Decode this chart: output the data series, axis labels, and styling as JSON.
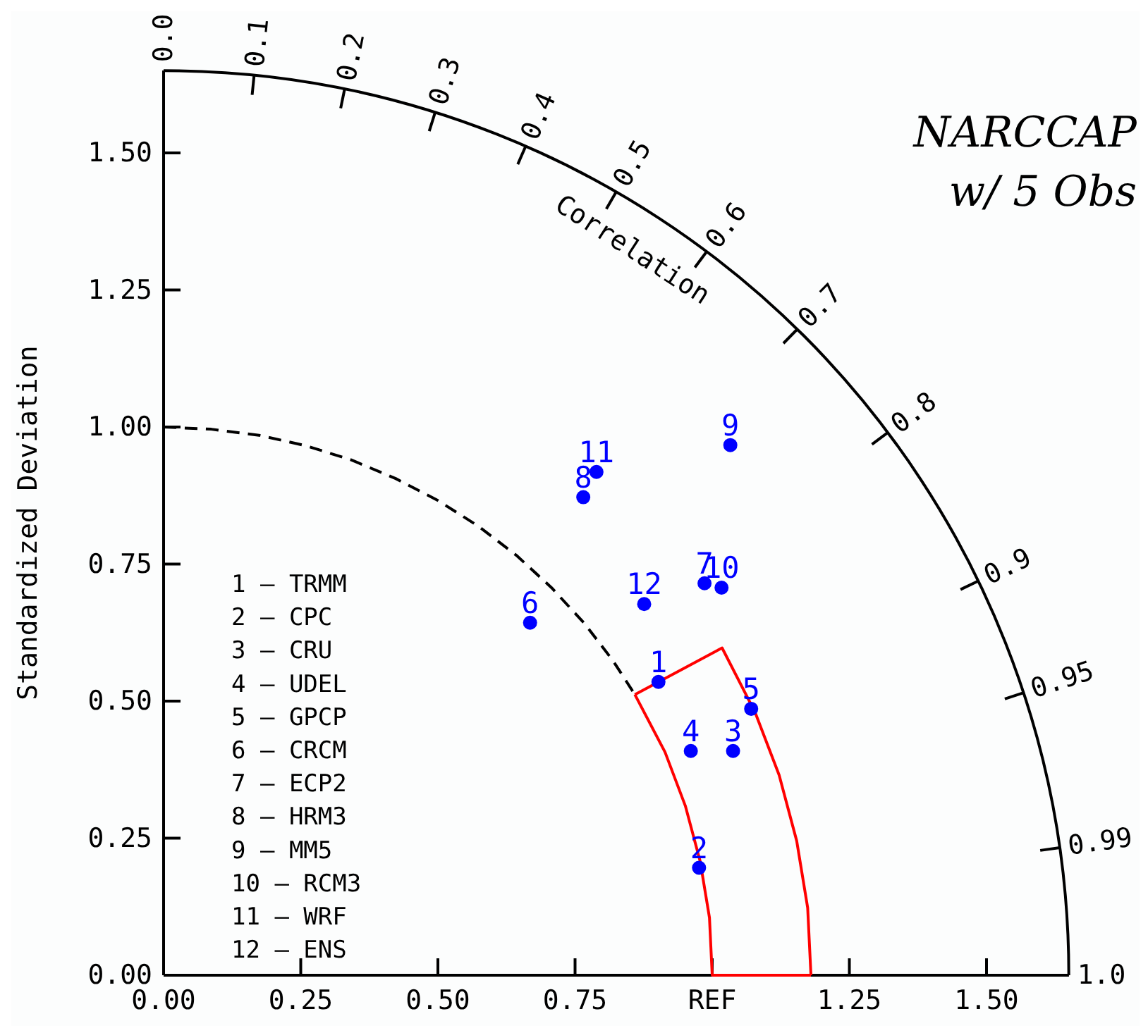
{
  "chart_data": {
    "type": "scatter",
    "title": "NARCCAP",
    "subtitle": "w/ 5 Obs",
    "ylabel": "Standardized Deviation",
    "xlim": [
      0,
      1.65
    ],
    "ylim": [
      0,
      1.65
    ],
    "xticks": [
      {
        "value": 0,
        "label": "0.00"
      },
      0.25,
      {
        "value": 0.5,
        "label": "0.50"
      },
      0.75,
      {
        "value": 1,
        "label": "REF"
      },
      1.25,
      {
        "value": 1.5,
        "label": "1.50"
      }
    ],
    "yticks": [
      {
        "value": 0,
        "label": "0.00"
      },
      0.25,
      {
        "value": 0.5,
        "label": "0.50"
      },
      0.75,
      {
        "value": 1,
        "label": "1.00"
      },
      1.25,
      {
        "value": 1.5,
        "label": "1.50"
      }
    ],
    "marker": "circle",
    "series": [
      {
        "name": "1",
        "color": "#0000ff",
        "x": [
          0.902
        ],
        "values": [
          0.535
        ]
      },
      {
        "name": "2",
        "color": "#0000ff",
        "x": [
          0.976
        ],
        "values": [
          0.196
        ]
      },
      {
        "name": "3",
        "color": "#0000ff",
        "x": [
          1.038
        ],
        "values": [
          0.409
        ]
      },
      {
        "name": "4",
        "color": "#0000ff",
        "x": [
          0.961
        ],
        "values": [
          0.409
        ]
      },
      {
        "name": "5",
        "color": "#0000ff",
        "x": [
          1.071
        ],
        "values": [
          0.486
        ]
      },
      {
        "name": "6",
        "color": "#0000ff",
        "x": [
          0.668
        ],
        "values": [
          0.643
        ]
      },
      {
        "name": "7",
        "color": "#0000ff",
        "x": [
          0.986
        ],
        "values": [
          0.715
        ]
      },
      {
        "name": "8",
        "color": "#0000ff",
        "x": [
          0.765
        ],
        "values": [
          0.872
        ]
      },
      {
        "name": "9",
        "color": "#0000ff",
        "x": [
          1.033
        ],
        "values": [
          0.967
        ]
      },
      {
        "name": "10",
        "color": "#0000ff",
        "x": [
          1.017
        ],
        "values": [
          0.707
        ]
      },
      {
        "name": "11",
        "color": "#0000ff",
        "x": [
          0.789
        ],
        "values": [
          0.918
        ]
      },
      {
        "name": "12",
        "color": "#0000ff",
        "x": [
          0.876
        ],
        "values": [
          0.677
        ]
      },
      {
        "type": "line",
        "color": "#000000",
        "line_style": "dashed",
        "marker": "none",
        "x": [
          0,
          0.087,
          0.174,
          0.259,
          0.342,
          0.423,
          0.5,
          0.574,
          0.643,
          0.707,
          0.766,
          0.819,
          0.859
        ],
        "values": [
          1,
          0.996,
          0.985,
          0.966,
          0.94,
          0.906,
          0.866,
          0.819,
          0.766,
          0.707,
          0.643,
          0.574,
          0.512
        ]
      },
      {
        "type": "line",
        "color": "#ff0000",
        "line_style": "solid",
        "marker": "none",
        "x": [
          0.859,
          0.914,
          0.951,
          0.978,
          0.995,
          1,
          1.18
        ],
        "values": [
          0.512,
          0.407,
          0.309,
          0.208,
          0.105,
          0,
          0
        ]
      },
      {
        "type": "line",
        "color": "#ff0000",
        "line_style": "solid",
        "marker": "none",
        "x": [
          0.859,
          1.018,
          1.078,
          1.122,
          1.154,
          1.174,
          1.18
        ],
        "values": [
          0.512,
          0.597,
          0.48,
          0.365,
          0.245,
          0.123,
          0
        ]
      }
    ],
    "annotations": [
      "1 – TRMM",
      "2 – CPC",
      "3 – CRU",
      "4 – UDEL",
      "5 – GPCP",
      "6 – CRCM",
      "7 – ECP2",
      "8 – HRM3",
      "9 – MM5",
      "10 – RCM3",
      "11 – WRF",
      "12 – ENS",
      "0.0",
      "0.1",
      "0.2",
      "0.3",
      "0.4",
      "0.5",
      "0.6",
      "0.7",
      "0.8",
      "0.9",
      "0.95",
      "0.99",
      "1.0",
      "Correlation"
    ]
  }
}
